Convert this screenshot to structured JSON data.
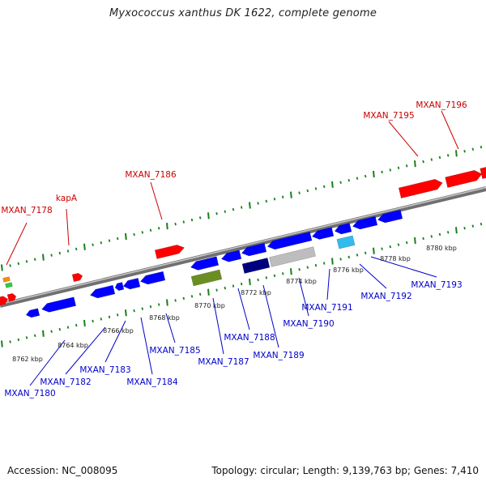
{
  "title": "Myxococcus xanthus DK 1622, complete genome",
  "footer": {
    "accession": "Accession: NC_008095",
    "summary": "Topology: circular; Length: 9,139,763 bp; Genes: 7,410"
  },
  "colors": {
    "forward_named": "#ff0000",
    "reverse": "#0000ff",
    "backbone": "#8f8f8f",
    "tick": "#1a7f1a",
    "label_red": "#cc0000",
    "label_blue": "#0000cc"
  },
  "scale_labels": [
    "8762 kbp",
    "8764 kbp",
    "8766 kbp",
    "8768 kbp",
    "8770 kbp",
    "8772 kbp",
    "8774 kbp",
    "8776 kbp",
    "8778 kbp",
    "8780 kbp"
  ],
  "gene_labels_top": [
    "MXAN_7178",
    "kapA",
    "MXAN_7186",
    "MXAN_7195",
    "MXAN_7196"
  ],
  "gene_labels_bottom": [
    "MXAN_7180",
    "MXAN_7182",
    "MXAN_7183",
    "MXAN_7184",
    "MXAN_7185",
    "MXAN_7187",
    "MXAN_7188",
    "MXAN_7189",
    "MXAN_7190",
    "MXAN_7191",
    "MXAN_7192",
    "MXAN_7193"
  ]
}
